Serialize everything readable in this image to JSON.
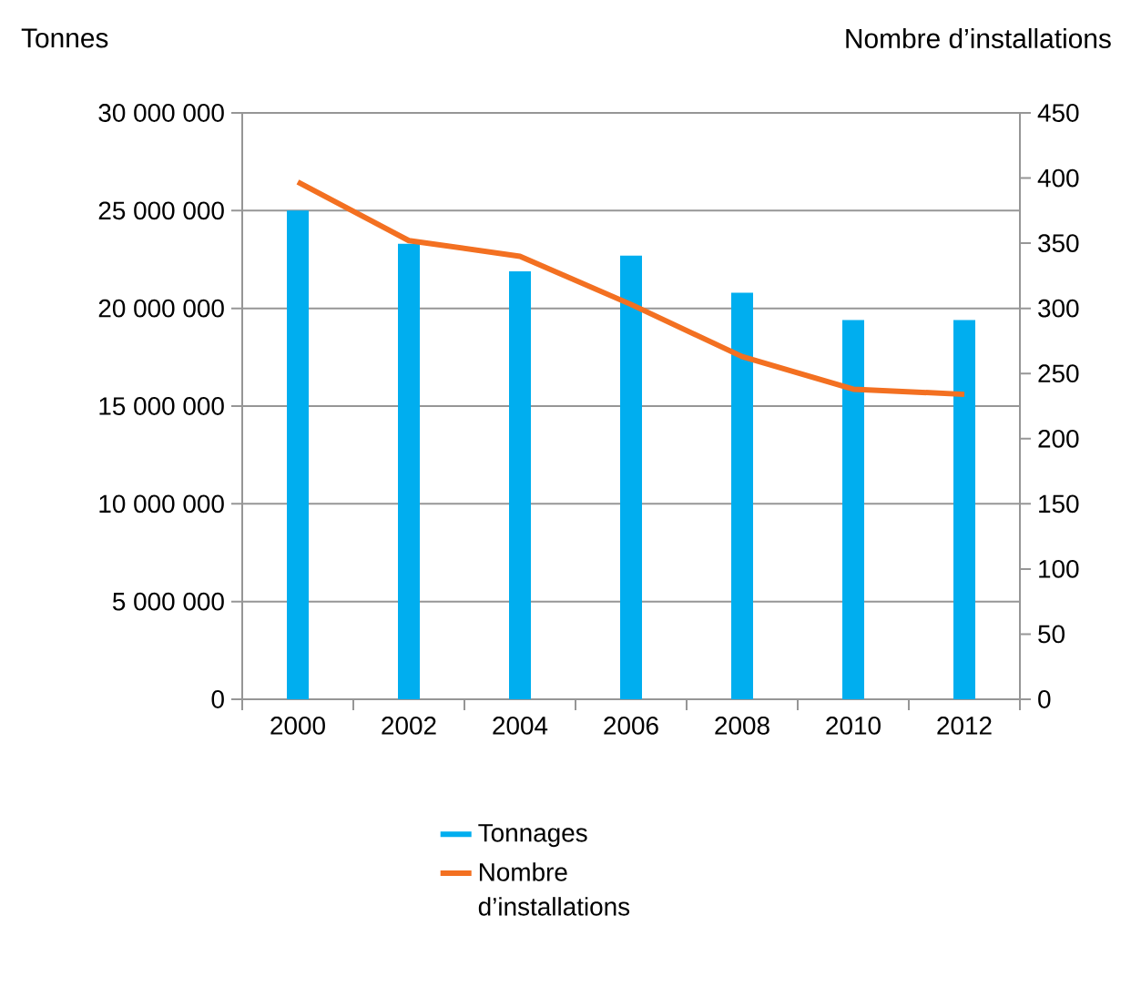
{
  "chart_data": {
    "type": "bar",
    "ylabel": "Tonnes",
    "y2label": "Nombre d’installations",
    "categories": [
      "2000",
      "2002",
      "2004",
      "2006",
      "2008",
      "2010",
      "2012"
    ],
    "series": [
      {
        "name": "Tonnages",
        "color": "#00aeef",
        "values": [
          25000000,
          23300000,
          21900000,
          22700000,
          20800000,
          19400000,
          19400000
        ]
      },
      {
        "name": "Nombre d’installations",
        "type": "line",
        "axis": "y2",
        "color": "#f37021",
        "values": [
          397,
          352,
          340,
          303,
          263,
          238,
          234
        ]
      }
    ],
    "ylim": [
      0,
      30000000
    ],
    "yticks": [
      {
        "value": 0,
        "label": "0"
      },
      {
        "value": 5000000,
        "label": "5 000 000"
      },
      {
        "value": 10000000,
        "label": "10 000 000"
      },
      {
        "value": 15000000,
        "label": "15 000 000"
      },
      {
        "value": 20000000,
        "label": "20 000 000"
      },
      {
        "value": 25000000,
        "label": "25 000 000"
      },
      {
        "value": 30000000,
        "label": "30 000 000"
      }
    ],
    "y2lim": [
      0,
      450
    ],
    "y2ticks": [
      0,
      50,
      100,
      150,
      200,
      250,
      300,
      350,
      400,
      450
    ],
    "grid": "y",
    "legend": "bottom",
    "marker": "none",
    "line_style": "solid"
  }
}
